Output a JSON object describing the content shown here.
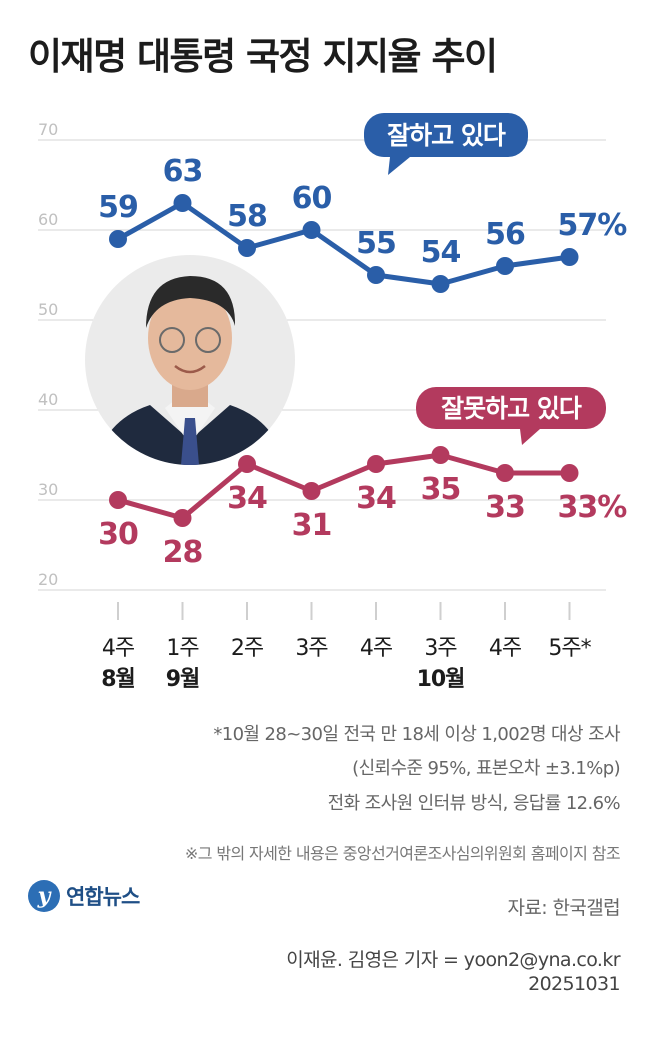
{
  "title": "이재명 대통령 국정 지지율 추이",
  "chart_data": {
    "type": "line",
    "title": "이재명 대통령 국정 지지율 추이",
    "categories": [
      "4주",
      "1주",
      "2주",
      "3주",
      "4주",
      "3주",
      "4주",
      "5주*"
    ],
    "month_labels": [
      "8월",
      "9월",
      "",
      "",
      "",
      "10월",
      "",
      ""
    ],
    "yticks": [
      70,
      60,
      50,
      40,
      30,
      20
    ],
    "ylim": [
      20,
      70
    ],
    "grid": true,
    "series": [
      {
        "name": "잘하고 있다",
        "color": "#2a5ea8",
        "values": [
          59,
          63,
          58,
          60,
          55,
          54,
          56,
          57
        ],
        "labels": [
          "59",
          "63",
          "58",
          "60",
          "55",
          "54",
          "56",
          "57%"
        ]
      },
      {
        "name": "잘못하고 있다",
        "color": "#b33a5e",
        "values": [
          30,
          28,
          34,
          31,
          34,
          35,
          33,
          33
        ],
        "labels": [
          "30",
          "28",
          "34",
          "31",
          "34",
          "35",
          "33",
          "33%"
        ]
      }
    ]
  },
  "colors": {
    "grid": "#d4d4d4",
    "tick": "#cfcfcf",
    "text": "#1c1c1c"
  },
  "notes": {
    "survey1": "*10월 28~30일 전국 만 18세 이상 1,002명 대상 조사",
    "survey2": "(신뢰수준 95%, 표본오차 ±3.1%p)",
    "survey3": "전화 조사원 인터뷰 방식, 응답률 12.6%",
    "detail": "※그 밖의 자세한 내용은 중앙선거여론조사심의위원회 홈페이지 참조",
    "source": "자료: 한국갤럽",
    "reporter": "이재윤. 김영은 기자 = yoon2@yna.co.kr",
    "date": "20251031"
  },
  "logo": {
    "text": "연합뉴스",
    "icon": "yonhap-logo-icon"
  },
  "portrait_icon": "president-portrait-icon"
}
